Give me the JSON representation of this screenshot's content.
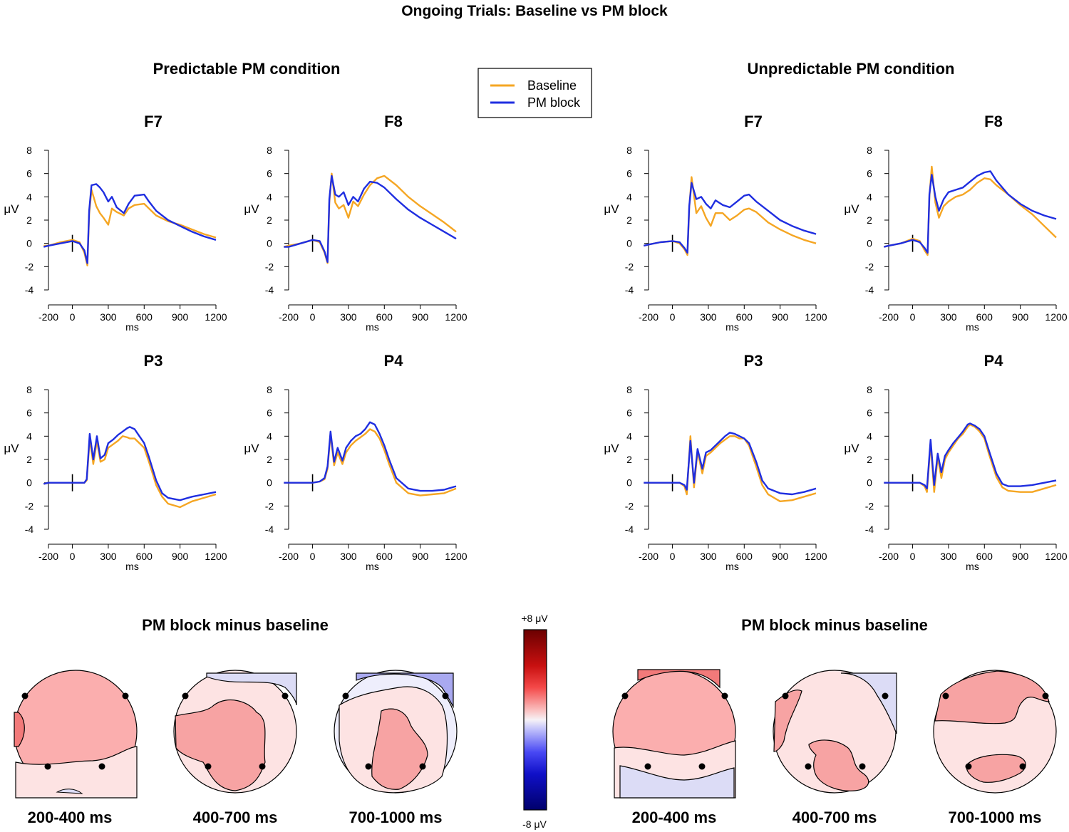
{
  "title": "Ongoing Trials: Baseline vs PM block",
  "conditions": [
    {
      "title": "Predictable PM condition",
      "map_title": "PM block minus baseline"
    },
    {
      "title": "Unpredictable PM condition",
      "map_title": "PM block minus baseline"
    }
  ],
  "legend": {
    "entries": [
      {
        "label": "Baseline",
        "color": "#f5a623"
      },
      {
        "label": "PM block",
        "color": "#1f2ee0"
      }
    ]
  },
  "colorbar": {
    "top_label": "+8 μV",
    "bottom_label": "-8 μV",
    "range": [
      -8,
      8
    ]
  },
  "colors": {
    "baseline": "#f5a623",
    "pm_block": "#1f2ee0",
    "contour": "#000000"
  },
  "time_windows": [
    "200-400 ms",
    "400-700 ms",
    "700-1000 ms"
  ],
  "chart_data": [
    {
      "type": "line",
      "condition": "Predictable PM condition",
      "title": "F7",
      "xlabel": "ms",
      "ylabel": "μV",
      "xlim": [
        -200,
        1200
      ],
      "ylim": [
        -4,
        8
      ],
      "xticks": [
        "-200",
        "0",
        "300",
        "600",
        "900",
        "1200"
      ],
      "yticks": [
        "8",
        "6",
        "4",
        "2",
        "0",
        "-2",
        "-4"
      ],
      "x": [
        -240,
        -200,
        -100,
        0,
        60,
        100,
        125,
        140,
        160,
        200,
        230,
        260,
        300,
        330,
        370,
        430,
        470,
        520,
        600,
        640,
        700,
        800,
        900,
        1000,
        1100,
        1200
      ],
      "series": [
        {
          "name": "Baseline",
          "values": [
            -0.2,
            -0.2,
            0.1,
            0.3,
            0.1,
            -0.8,
            -1.9,
            2.5,
            4.6,
            3.2,
            2.6,
            2.2,
            1.6,
            3.0,
            2.7,
            2.4,
            3.0,
            3.3,
            3.4,
            3.0,
            2.4,
            1.9,
            1.6,
            1.2,
            0.8,
            0.5
          ]
        },
        {
          "name": "PM block",
          "values": [
            -0.3,
            -0.2,
            0.0,
            0.2,
            0.0,
            -0.6,
            -1.7,
            2.8,
            5.0,
            5.1,
            4.8,
            4.4,
            3.6,
            4.0,
            3.1,
            2.6,
            3.4,
            4.1,
            4.2,
            3.6,
            2.8,
            2.0,
            1.5,
            1.0,
            0.6,
            0.3
          ]
        }
      ]
    },
    {
      "type": "line",
      "condition": "Predictable PM condition",
      "title": "F8",
      "xlabel": "ms",
      "ylabel": "μV",
      "xlim": [
        -200,
        1200
      ],
      "ylim": [
        -4,
        8
      ],
      "xticks": [
        "-200",
        "0",
        "300",
        "600",
        "900",
        "1200"
      ],
      "yticks": [
        "8",
        "6",
        "4",
        "2",
        "0",
        "-2",
        "-4"
      ],
      "x": [
        -240,
        -200,
        -100,
        0,
        60,
        100,
        125,
        140,
        160,
        190,
        220,
        260,
        300,
        340,
        380,
        430,
        480,
        540,
        600,
        700,
        800,
        900,
        1000,
        1100,
        1200
      ],
      "series": [
        {
          "name": "Baseline",
          "values": [
            -0.3,
            -0.2,
            0.0,
            0.3,
            0.1,
            -0.8,
            -1.7,
            3.5,
            6.0,
            3.5,
            3.0,
            3.3,
            2.2,
            3.6,
            3.2,
            4.2,
            5.0,
            5.6,
            5.8,
            5.0,
            4.0,
            3.2,
            2.5,
            1.8,
            1.0
          ]
        },
        {
          "name": "PM block",
          "values": [
            -0.3,
            -0.3,
            0.0,
            0.3,
            0.2,
            -0.7,
            -1.6,
            3.8,
            5.8,
            4.2,
            4.0,
            4.4,
            3.3,
            4.0,
            3.6,
            4.7,
            5.3,
            5.2,
            4.8,
            3.8,
            2.9,
            2.2,
            1.6,
            1.0,
            0.4
          ]
        }
      ]
    },
    {
      "type": "line",
      "condition": "Unpredictable PM condition",
      "title": "F7",
      "xlabel": "ms",
      "ylabel": "μV",
      "xlim": [
        -200,
        1200
      ],
      "ylim": [
        -4,
        8
      ],
      "xticks": [
        "-200",
        "0",
        "300",
        "600",
        "900",
        "1200"
      ],
      "yticks": [
        "8",
        "6",
        "4",
        "2",
        "0",
        "-2",
        "-4"
      ],
      "x": [
        -240,
        -200,
        -100,
        0,
        60,
        100,
        125,
        140,
        160,
        200,
        240,
        280,
        320,
        360,
        420,
        480,
        540,
        600,
        640,
        700,
        800,
        900,
        1000,
        1100,
        1200
      ],
      "series": [
        {
          "name": "Baseline",
          "values": [
            -0.2,
            -0.1,
            0.1,
            0.2,
            0.0,
            -0.5,
            -1.0,
            3.0,
            5.7,
            2.6,
            3.2,
            2.2,
            1.5,
            2.6,
            2.6,
            2.0,
            2.4,
            2.9,
            3.0,
            2.7,
            1.8,
            1.2,
            0.7,
            0.3,
            0.0
          ]
        },
        {
          "name": "PM block",
          "values": [
            -0.2,
            -0.1,
            0.1,
            0.2,
            0.1,
            -0.4,
            -0.8,
            3.2,
            5.2,
            3.8,
            4.0,
            3.4,
            3.0,
            3.7,
            3.3,
            3.1,
            3.6,
            4.1,
            4.2,
            3.6,
            2.8,
            2.0,
            1.5,
            1.1,
            0.8
          ]
        }
      ]
    },
    {
      "type": "line",
      "condition": "Unpredictable PM condition",
      "title": "F8",
      "xlabel": "ms",
      "ylabel": "μV",
      "xlim": [
        -200,
        1200
      ],
      "ylim": [
        -4,
        8
      ],
      "xticks": [
        "-200",
        "0",
        "300",
        "600",
        "900",
        "1200"
      ],
      "yticks": [
        "8",
        "6",
        "4",
        "2",
        "0",
        "-2",
        "-4"
      ],
      "x": [
        -240,
        -200,
        -100,
        0,
        60,
        100,
        125,
        140,
        160,
        190,
        220,
        260,
        300,
        360,
        420,
        480,
        540,
        600,
        650,
        700,
        800,
        900,
        1000,
        1100,
        1200
      ],
      "series": [
        {
          "name": "Baseline",
          "values": [
            -0.3,
            -0.2,
            0.0,
            0.4,
            0.2,
            -0.6,
            -1.0,
            4.0,
            6.6,
            3.5,
            2.2,
            3.2,
            3.6,
            4.0,
            4.2,
            4.6,
            5.2,
            5.6,
            5.5,
            5.0,
            4.2,
            3.3,
            2.5,
            1.5,
            0.5
          ]
        },
        {
          "name": "PM block",
          "values": [
            -0.3,
            -0.2,
            0.0,
            0.3,
            0.1,
            -0.4,
            -0.8,
            4.2,
            5.9,
            4.0,
            2.8,
            3.8,
            4.4,
            4.6,
            4.8,
            5.3,
            5.8,
            6.1,
            6.2,
            5.4,
            4.2,
            3.4,
            2.8,
            2.4,
            2.1
          ]
        }
      ]
    },
    {
      "type": "line",
      "condition": "Predictable PM condition",
      "title": "P3",
      "xlabel": "ms",
      "ylabel": "μV",
      "xlim": [
        -200,
        1200
      ],
      "ylim": [
        -4,
        8
      ],
      "xticks": [
        "-200",
        "0",
        "300",
        "600",
        "900",
        "1200"
      ],
      "yticks": [
        "8",
        "6",
        "4",
        "2",
        "0",
        "-2",
        "-4"
      ],
      "x": [
        -240,
        -200,
        -100,
        0,
        60,
        100,
        120,
        145,
        175,
        205,
        235,
        270,
        300,
        340,
        380,
        420,
        460,
        480,
        520,
        560,
        600,
        640,
        700,
        750,
        800,
        900,
        1000,
        1100,
        1200
      ],
      "series": [
        {
          "name": "Baseline",
          "values": [
            -0.1,
            0.0,
            0.0,
            0.0,
            0.0,
            0.0,
            0.2,
            3.8,
            1.6,
            3.6,
            1.8,
            2.0,
            3.0,
            3.3,
            3.6,
            4.0,
            3.9,
            3.8,
            3.8,
            3.4,
            3.0,
            1.8,
            -0.2,
            -1.2,
            -1.8,
            -2.1,
            -1.6,
            -1.3,
            -1.0
          ]
        },
        {
          "name": "PM block",
          "values": [
            -0.1,
            0.0,
            0.0,
            0.0,
            0.0,
            0.0,
            0.3,
            4.2,
            2.0,
            4.0,
            2.1,
            2.4,
            3.4,
            3.7,
            4.1,
            4.4,
            4.7,
            4.8,
            4.6,
            4.0,
            3.4,
            2.2,
            0.2,
            -0.9,
            -1.3,
            -1.5,
            -1.2,
            -1.0,
            -0.8
          ]
        }
      ]
    },
    {
      "type": "line",
      "condition": "Predictable PM condition",
      "title": "P4",
      "xlabel": "ms",
      "ylabel": "μV",
      "xlim": [
        -200,
        1200
      ],
      "ylim": [
        -4,
        8
      ],
      "xticks": [
        "-200",
        "0",
        "300",
        "600",
        "900",
        "1200"
      ],
      "yticks": [
        "8",
        "6",
        "4",
        "2",
        "0",
        "-2",
        "-4"
      ],
      "x": [
        -240,
        -200,
        -100,
        0,
        60,
        100,
        125,
        150,
        180,
        210,
        250,
        280,
        320,
        360,
        400,
        440,
        480,
        520,
        560,
        600,
        640,
        700,
        800,
        900,
        1000,
        1100,
        1200
      ],
      "series": [
        {
          "name": "Baseline",
          "values": [
            0.0,
            0.0,
            0.0,
            0.0,
            0.1,
            0.3,
            1.2,
            4.2,
            1.5,
            2.6,
            1.6,
            2.6,
            3.2,
            3.6,
            3.9,
            4.2,
            4.6,
            4.4,
            3.8,
            2.8,
            1.6,
            0.0,
            -0.9,
            -1.1,
            -1.0,
            -0.9,
            -0.5
          ]
        },
        {
          "name": "PM block",
          "values": [
            0.0,
            0.0,
            0.0,
            0.0,
            0.1,
            0.4,
            1.4,
            4.4,
            1.8,
            3.0,
            1.9,
            3.0,
            3.6,
            4.0,
            4.2,
            4.6,
            5.2,
            5.0,
            4.2,
            3.2,
            2.0,
            0.4,
            -0.5,
            -0.7,
            -0.7,
            -0.6,
            -0.3
          ]
        }
      ]
    },
    {
      "type": "line",
      "condition": "Unpredictable PM condition",
      "title": "P3",
      "xlabel": "ms",
      "ylabel": "μV",
      "xlim": [
        -200,
        1200
      ],
      "ylim": [
        -4,
        8
      ],
      "xticks": [
        "-200",
        "0",
        "300",
        "600",
        "900",
        "1200"
      ],
      "yticks": [
        "8",
        "6",
        "4",
        "2",
        "0",
        "-2",
        "-4"
      ],
      "x": [
        -240,
        -200,
        -100,
        0,
        60,
        100,
        120,
        150,
        180,
        210,
        250,
        280,
        320,
        360,
        400,
        440,
        480,
        520,
        560,
        600,
        640,
        700,
        750,
        800,
        900,
        1000,
        1100,
        1200
      ],
      "series": [
        {
          "name": "Baseline",
          "values": [
            0.0,
            0.0,
            0.0,
            0.0,
            0.0,
            -0.3,
            -1.0,
            4.0,
            -0.4,
            2.7,
            0.8,
            2.3,
            2.6,
            3.0,
            3.4,
            3.7,
            4.0,
            4.0,
            3.8,
            3.8,
            3.2,
            1.4,
            -0.2,
            -1.0,
            -1.6,
            -1.5,
            -1.2,
            -0.9
          ]
        },
        {
          "name": "PM block",
          "values": [
            0.0,
            0.0,
            0.0,
            0.0,
            0.0,
            -0.2,
            -0.6,
            3.6,
            0.0,
            2.9,
            1.2,
            2.6,
            2.8,
            3.2,
            3.6,
            4.0,
            4.3,
            4.2,
            4.0,
            3.8,
            3.4,
            1.8,
            0.2,
            -0.5,
            -0.9,
            -1.0,
            -0.8,
            -0.5
          ]
        }
      ]
    },
    {
      "type": "line",
      "condition": "Unpredictable PM condition",
      "title": "P4",
      "xlabel": "ms",
      "ylabel": "μV",
      "xlim": [
        -200,
        1200
      ],
      "ylim": [
        -4,
        8
      ],
      "xticks": [
        "-200",
        "0",
        "300",
        "600",
        "900",
        "1200"
      ],
      "yticks": [
        "8",
        "6",
        "4",
        "2",
        "0",
        "-2",
        "-4"
      ],
      "x": [
        -240,
        -200,
        -100,
        0,
        60,
        100,
        120,
        150,
        180,
        210,
        240,
        270,
        300,
        340,
        380,
        420,
        460,
        480,
        520,
        560,
        600,
        640,
        700,
        750,
        800,
        900,
        1000,
        1100,
        1200
      ],
      "series": [
        {
          "name": "Baseline",
          "values": [
            0.0,
            0.0,
            0.0,
            0.0,
            0.0,
            -0.3,
            -0.8,
            3.4,
            -0.8,
            2.2,
            0.4,
            2.0,
            2.6,
            3.2,
            3.8,
            4.2,
            4.8,
            5.0,
            4.8,
            4.4,
            3.8,
            2.4,
            0.5,
            -0.4,
            -0.7,
            -0.8,
            -0.8,
            -0.5,
            -0.2
          ]
        },
        {
          "name": "PM block",
          "values": [
            0.0,
            0.0,
            0.0,
            0.0,
            0.0,
            -0.2,
            -0.5,
            3.7,
            -0.2,
            2.5,
            0.9,
            2.3,
            2.8,
            3.4,
            3.9,
            4.4,
            5.0,
            5.1,
            4.9,
            4.6,
            4.0,
            2.7,
            0.8,
            -0.1,
            -0.3,
            -0.3,
            -0.2,
            0.0,
            0.2
          ]
        }
      ]
    }
  ]
}
